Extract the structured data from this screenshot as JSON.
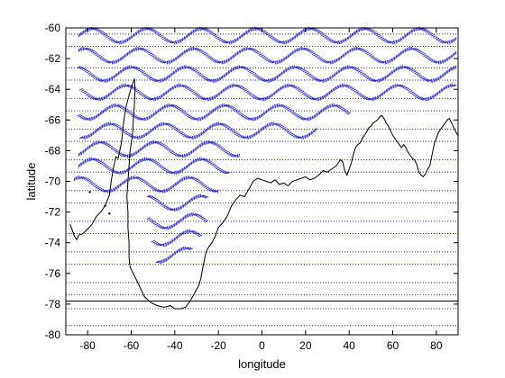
{
  "chart_data": {
    "type": "scatter",
    "title": "",
    "xlabel": "longitude",
    "ylabel": "latitude",
    "xlim": [
      -90,
      90
    ],
    "ylim": [
      -80,
      -60
    ],
    "xticks": [
      -80,
      -60,
      -40,
      -20,
      0,
      20,
      40,
      60,
      80
    ],
    "yticks": [
      -80,
      -78,
      -76,
      -74,
      -72,
      -70,
      -68,
      -66,
      -64,
      -62,
      -60
    ],
    "grid": "horizontal dotted lines",
    "reference_lines_lat": [
      -60.4,
      -61.2,
      -62.6,
      -63.4,
      -64.6,
      -65.4,
      -66.6,
      -67.4,
      -68.6,
      -69.4,
      -70.6,
      -71.4,
      -72.6,
      -73.4,
      -74.6,
      -75.4,
      -76.6,
      -77.4,
      -78.3,
      -79.4
    ],
    "solid_line_lat": -77.8,
    "colors": {
      "glyphs": "#1a1acc",
      "coastline": "#000000",
      "grid": "#2b2bc8",
      "frame": "#000000"
    },
    "series": [
      {
        "marker": "wavy track (tilted tick glyphs)",
        "rows": [
          {
            "lat": -60.5,
            "lon_start": -84,
            "lon_end": 89
          },
          {
            "lat": -61.8,
            "lon_start": -84,
            "lon_end": 89
          },
          {
            "lat": -63.0,
            "lon_start": -84,
            "lon_end": 89
          },
          {
            "lat": -64.2,
            "lon_start": -83,
            "lon_end": 89
          },
          {
            "lat": -65.5,
            "lon_start": -84,
            "lon_end": 40
          },
          {
            "lat": -66.7,
            "lon_start": -83,
            "lon_end": 25
          },
          {
            "lat": -67.9,
            "lon_start": -84,
            "lon_end": -10
          },
          {
            "lat": -69.0,
            "lon_start": -84,
            "lon_end": -15
          },
          {
            "lat": -70.2,
            "lon_start": -86,
            "lon_end": -20
          },
          {
            "lat": -71.4,
            "lon_start": -52,
            "lon_end": -25
          },
          {
            "lat": -72.6,
            "lon_start": -52,
            "lon_end": -25
          },
          {
            "lat": -73.7,
            "lon_start": -50,
            "lon_end": -28
          },
          {
            "lat": -74.8,
            "lon_start": -48,
            "lon_end": -32
          }
        ]
      }
    ],
    "coastline": [
      [
        -88,
        -72.8
      ],
      [
        -87,
        -73.2
      ],
      [
        -86,
        -73.6
      ],
      [
        -85,
        -73.8
      ],
      [
        -84,
        -73.5
      ],
      [
        -82,
        -73.4
      ],
      [
        -80,
        -73.1
      ],
      [
        -78,
        -72.8
      ],
      [
        -76,
        -72.3
      ],
      [
        -74,
        -72.0
      ],
      [
        -72,
        -71.6
      ],
      [
        -70,
        -70.9
      ],
      [
        -69,
        -69.8
      ],
      [
        -68,
        -69.0
      ],
      [
        -67,
        -68.4
      ],
      [
        -66,
        -68.5
      ],
      [
        -64.5,
        -67.5
      ],
      [
        -63.5,
        -66.2
      ],
      [
        -62.5,
        -65.2
      ],
      [
        -61,
        -64.4
      ],
      [
        -60,
        -63.9
      ],
      [
        -59,
        -63.5
      ],
      [
        -58.5,
        -63.3
      ],
      [
        -58.2,
        -64.0
      ],
      [
        -58.5,
        -65.0
      ],
      [
        -59,
        -66.0
      ],
      [
        -59.5,
        -67.0
      ],
      [
        -60.5,
        -68.0
      ],
      [
        -61,
        -69.0
      ],
      [
        -61.5,
        -70.0
      ],
      [
        -62,
        -71.0
      ],
      [
        -61.5,
        -72.0
      ],
      [
        -61.5,
        -73.0
      ],
      [
        -61,
        -74.0
      ],
      [
        -61,
        -75.0
      ],
      [
        -60.5,
        -75.6
      ],
      [
        -58,
        -76.3
      ],
      [
        -56,
        -76.9
      ],
      [
        -54,
        -77.5
      ],
      [
        -51,
        -77.9
      ],
      [
        -48,
        -78.1
      ],
      [
        -45,
        -78.2
      ],
      [
        -42,
        -78.1
      ],
      [
        -40,
        -78.3
      ],
      [
        -37,
        -78.3
      ],
      [
        -35,
        -78.2
      ],
      [
        -33,
        -77.8
      ],
      [
        -31,
        -77.3
      ],
      [
        -29,
        -76.8
      ],
      [
        -28,
        -76.3
      ],
      [
        -27,
        -75.5
      ],
      [
        -26,
        -74.8
      ],
      [
        -25,
        -74.4
      ],
      [
        -23,
        -74.0
      ],
      [
        -21.5,
        -73.6
      ],
      [
        -20,
        -73.0
      ],
      [
        -18,
        -72.7
      ],
      [
        -16,
        -72.3
      ],
      [
        -14,
        -71.6
      ],
      [
        -12,
        -71.2
      ],
      [
        -10,
        -70.9
      ],
      [
        -8,
        -71.0
      ],
      [
        -6,
        -70.5
      ],
      [
        -4,
        -70.0
      ],
      [
        -2,
        -69.8
      ],
      [
        0,
        -69.9
      ],
      [
        2,
        -70.0
      ],
      [
        4,
        -70.1
      ],
      [
        6,
        -69.9
      ],
      [
        8,
        -70.2
      ],
      [
        10,
        -70.1
      ],
      [
        12,
        -70.3
      ],
      [
        14,
        -70.0
      ],
      [
        16,
        -69.9
      ],
      [
        18,
        -69.8
      ],
      [
        20,
        -69.7
      ],
      [
        22,
        -69.9
      ],
      [
        24,
        -69.8
      ],
      [
        26,
        -69.6
      ],
      [
        28,
        -69.3
      ],
      [
        30,
        -69.4
      ],
      [
        32,
        -69.2
      ],
      [
        34,
        -69.0
      ],
      [
        35,
        -68.8
      ],
      [
        36,
        -68.6
      ],
      [
        37,
        -68.7
      ],
      [
        38,
        -69.3
      ],
      [
        39,
        -69.6
      ],
      [
        40,
        -69.2
      ],
      [
        41,
        -68.8
      ],
      [
        42,
        -68.2
      ],
      [
        43,
        -67.8
      ],
      [
        44,
        -67.6
      ],
      [
        45,
        -67.5
      ],
      [
        46,
        -67.2
      ],
      [
        47,
        -67.0
      ],
      [
        48,
        -66.8
      ],
      [
        49,
        -66.5
      ],
      [
        50,
        -66.4
      ],
      [
        51,
        -66.2
      ],
      [
        52,
        -66.1
      ],
      [
        53,
        -66.0
      ],
      [
        54,
        -65.8
      ],
      [
        55,
        -65.7
      ],
      [
        56,
        -65.9
      ],
      [
        57,
        -66.2
      ],
      [
        58,
        -66.4
      ],
      [
        59,
        -66.7
      ],
      [
        60,
        -67.0
      ],
      [
        61,
        -67.2
      ],
      [
        62,
        -67.4
      ],
      [
        63,
        -67.6
      ],
      [
        64,
        -67.8
      ],
      [
        65,
        -67.6
      ],
      [
        66,
        -67.8
      ],
      [
        67,
        -68.1
      ],
      [
        68,
        -68.3
      ],
      [
        69,
        -68.5
      ],
      [
        70,
        -68.6
      ],
      [
        71,
        -68.9
      ],
      [
        72,
        -69.4
      ],
      [
        73,
        -69.6
      ],
      [
        74,
        -69.7
      ],
      [
        75,
        -69.5
      ],
      [
        76,
        -69.2
      ],
      [
        77,
        -69.0
      ],
      [
        78,
        -68.3
      ],
      [
        79,
        -67.6
      ],
      [
        80,
        -67.2
      ],
      [
        81,
        -66.8
      ],
      [
        82,
        -66.6
      ],
      [
        83,
        -66.4
      ],
      [
        84,
        -66.2
      ],
      [
        85,
        -66.0
      ],
      [
        86,
        -65.9
      ],
      [
        87,
        -66.2
      ],
      [
        88,
        -66.5
      ],
      [
        89,
        -66.8
      ],
      [
        90,
        -67.0
      ]
    ],
    "islands": [
      [
        -79,
        -70.7
      ],
      [
        -72,
        -71.6
      ],
      [
        -70,
        -72.1
      ]
    ]
  }
}
